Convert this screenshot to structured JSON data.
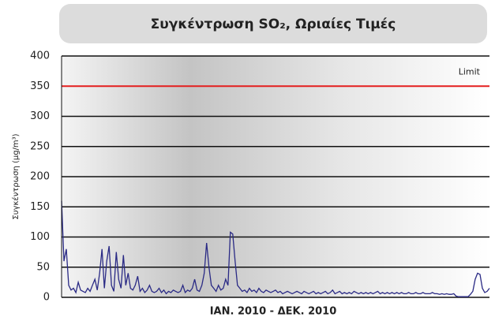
{
  "chart_data": {
    "type": "line",
    "title": "Συγκέντρωση SO₂, Ωριαίες Τιμές",
    "ylabel": "Συγκέντρωση (μg/m³)",
    "xlabel": "ΙΑΝ. 2010 -  ΔΕΚ. 2010",
    "ylim": [
      0,
      400
    ],
    "yticks": [
      0,
      50,
      100,
      150,
      200,
      250,
      300,
      350,
      400
    ],
    "grid": true,
    "color": "#2a2a85",
    "annotations": [
      {
        "label": "Limit",
        "value": 350,
        "color": "#e41e1e"
      }
    ],
    "values": [
      160,
      60,
      80,
      20,
      12,
      15,
      8,
      25,
      12,
      10,
      8,
      15,
      10,
      20,
      30,
      12,
      40,
      80,
      15,
      60,
      85,
      20,
      10,
      75,
      30,
      15,
      70,
      20,
      40,
      15,
      12,
      20,
      35,
      10,
      15,
      8,
      12,
      20,
      10,
      8,
      10,
      15,
      8,
      12,
      6,
      10,
      8,
      12,
      10,
      8,
      10,
      20,
      8,
      12,
      10,
      15,
      30,
      12,
      10,
      20,
      40,
      90,
      50,
      20,
      15,
      10,
      20,
      12,
      15,
      30,
      20,
      108,
      105,
      60,
      20,
      15,
      10,
      12,
      8,
      15,
      10,
      12,
      8,
      15,
      10,
      8,
      12,
      10,
      8,
      10,
      12,
      8,
      10,
      6,
      8,
      10,
      8,
      6,
      8,
      10,
      8,
      6,
      10,
      8,
      6,
      8,
      10,
      6,
      8,
      6,
      8,
      10,
      6,
      8,
      12,
      6,
      8,
      10,
      6,
      8,
      6,
      8,
      6,
      10,
      8,
      6,
      8,
      6,
      8,
      6,
      8,
      6,
      8,
      10,
      6,
      8,
      6,
      8,
      6,
      8,
      6,
      8,
      6,
      8,
      6,
      6,
      8,
      6,
      6,
      8,
      6,
      6,
      8,
      6,
      6,
      6,
      8,
      6,
      6,
      5,
      6,
      5,
      6,
      5,
      5,
      6,
      2,
      1,
      1,
      1,
      1,
      1,
      5,
      10,
      30,
      40,
      38,
      15,
      8,
      10,
      15
    ]
  }
}
